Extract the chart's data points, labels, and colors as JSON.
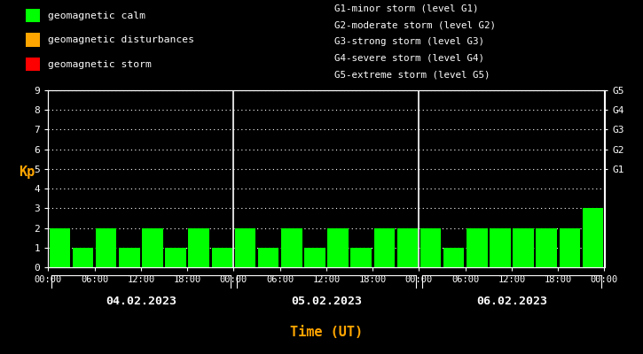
{
  "background_color": "#000000",
  "plot_bg_color": "#000000",
  "text_color": "#ffffff",
  "bar_color": "#00ff00",
  "orange_color": "#ffa500",
  "days": [
    "04.02.2023",
    "05.02.2023",
    "06.02.2023"
  ],
  "kp_values": [
    2,
    1,
    2,
    1,
    2,
    1,
    2,
    1,
    2,
    1,
    2,
    1,
    2,
    1,
    2,
    2,
    2,
    1,
    2,
    2,
    2,
    2,
    2,
    3
  ],
  "ylim": [
    0,
    9
  ],
  "yticks": [
    0,
    1,
    2,
    3,
    4,
    5,
    6,
    7,
    8,
    9
  ],
  "ylabel": "Kp",
  "xlabel": "Time (UT)",
  "legend_items": [
    {
      "label": "geomagnetic calm",
      "color": "#00ff00"
    },
    {
      "label": "geomagnetic disturbances",
      "color": "#ffa500"
    },
    {
      "label": "geomagnetic storm",
      "color": "#ff0000"
    }
  ],
  "g_labels": [
    "G1-minor storm (level G1)",
    "G2-moderate storm (level G2)",
    "G3-strong storm (level G3)",
    "G4-severe storm (level G4)",
    "G5-extreme storm (level G5)"
  ],
  "g_levels": [
    5,
    6,
    7,
    8,
    9
  ],
  "g_tick_labels": [
    "G1",
    "G2",
    "G3",
    "G4",
    "G5"
  ],
  "xtick_labels_per_day": [
    "00:00",
    "06:00",
    "12:00",
    "18:00"
  ],
  "bar_width": 0.9
}
